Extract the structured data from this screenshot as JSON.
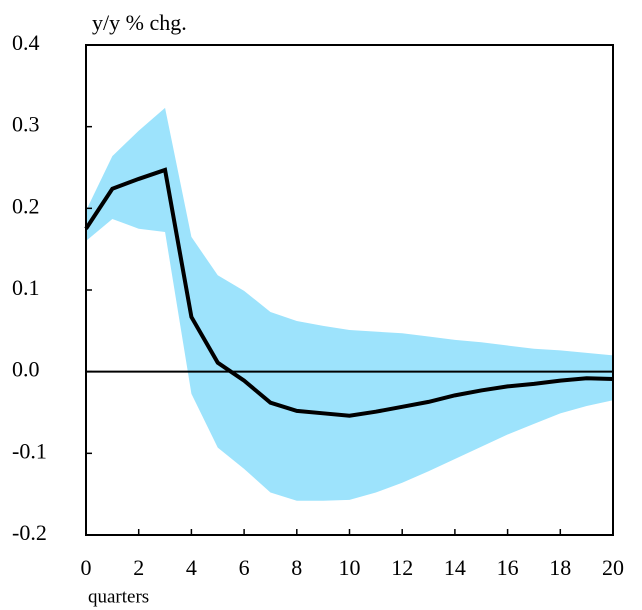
{
  "chart_data": {
    "type": "line",
    "y_label": "y/y % chg.",
    "x_label": "quarters",
    "x": [
      0,
      1,
      2,
      3,
      4,
      5,
      6,
      7,
      8,
      9,
      10,
      11,
      12,
      13,
      14,
      15,
      16,
      17,
      18,
      19,
      20
    ],
    "series": [
      {
        "color": "#000000",
        "values": [
          0.175,
          0.224,
          0.236,
          0.247,
          0.067,
          0.011,
          -0.011,
          -0.038,
          -0.048,
          -0.051,
          -0.054,
          -0.049,
          -0.043,
          -0.037,
          -0.029,
          -0.023,
          -0.018,
          -0.015,
          -0.011,
          -0.008,
          -0.009
        ]
      }
    ],
    "band": {
      "color": "#9de3fc",
      "upper": [
        0.197,
        0.264,
        0.295,
        0.323,
        0.165,
        0.118,
        0.099,
        0.073,
        0.062,
        0.056,
        0.051,
        0.049,
        0.047,
        0.043,
        0.039,
        0.036,
        0.032,
        0.028,
        0.026,
        0.023,
        0.02
      ],
      "lower": [
        0.16,
        0.187,
        0.175,
        0.171,
        -0.027,
        -0.093,
        -0.119,
        -0.148,
        -0.158,
        -0.158,
        -0.157,
        -0.148,
        -0.136,
        -0.122,
        -0.107,
        -0.092,
        -0.077,
        -0.064,
        -0.051,
        -0.042,
        -0.035
      ]
    },
    "hline": 0,
    "xlim": [
      0,
      20
    ],
    "xticks": [
      0,
      2,
      4,
      6,
      8,
      10,
      12,
      14,
      16,
      18,
      20
    ],
    "ylim": [
      -0.2,
      0.4
    ],
    "yticks": [
      -0.2,
      -0.1,
      {
        "value": 0,
        "label": "0.0"
      },
      0.1,
      0.2,
      0.3,
      0.4
    ]
  }
}
